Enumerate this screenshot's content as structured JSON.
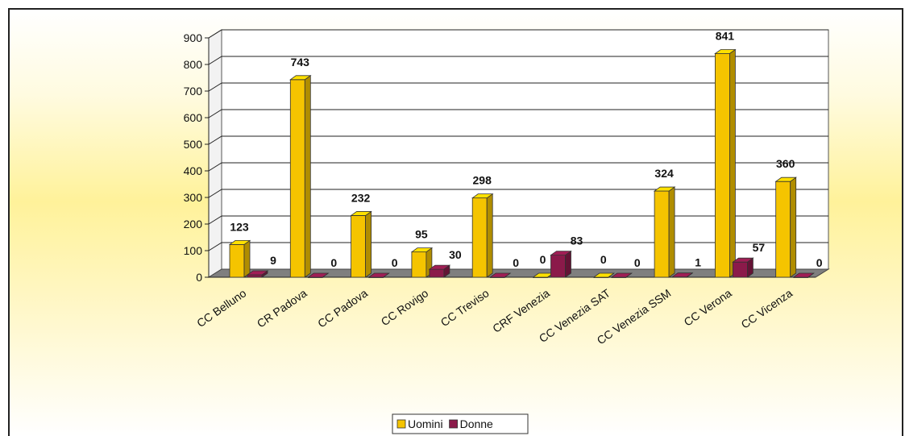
{
  "chart_data": {
    "type": "bar",
    "categories": [
      "CC Belluno",
      "CR Padova",
      "CC Padova",
      "CC Rovigo",
      "CC Treviso",
      "CRF Venezia",
      "CC Venezia SAT",
      "CC Venezia SSM",
      "CC Verona",
      "CC Vicenza"
    ],
    "series": [
      {
        "name": "Uomini",
        "values": [
          123,
          743,
          232,
          95,
          298,
          0,
          0,
          324,
          841,
          360
        ],
        "color": "#f5c400"
      },
      {
        "name": "Donne",
        "values": [
          9,
          0,
          0,
          30,
          0,
          83,
          0,
          1,
          57,
          0
        ],
        "color": "#8b1a4a"
      }
    ],
    "yticks": [
      "0",
      "100",
      "200",
      "300",
      "400",
      "500",
      "600",
      "700",
      "800",
      "900"
    ],
    "ylim": [
      0,
      900
    ],
    "title": "",
    "xlabel": "",
    "ylabel": "",
    "grid": true,
    "legend_position": "bottom",
    "style": "3d-clustered-column"
  }
}
